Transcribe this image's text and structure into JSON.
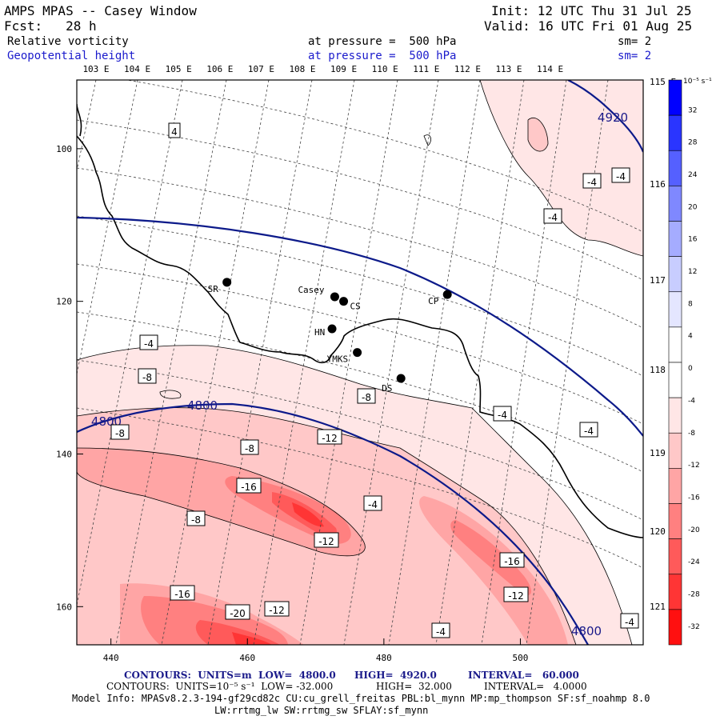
{
  "header": {
    "title": "AMPS MPAS -- Casey Window",
    "init": "Init: 12 UTC Thu 31 Jul 25",
    "fcst": "Fcst:   28 h",
    "valid": "Valid: 16 UTC Fri 01 Aug 25",
    "field1_name": "Relative vorticity",
    "field1_level": "at pressure =  500 hPa",
    "field1_sm": "sm= 2",
    "field2_name": "Geopotential height",
    "field2_level": "at pressure =  500 hPa",
    "field2_sm": "sm= 2"
  },
  "top_lon_labels": [
    "103 E",
    "104 E",
    "105 E",
    "106 E",
    "107 E",
    "108 E",
    "109 E",
    "110 E",
    "111 E",
    "112 E",
    "113 E",
    "114 E"
  ],
  "right_lat_labels": [
    "115 E",
    "116 E",
    "117 E",
    "118 E",
    "119 E",
    "120 E",
    "121 E"
  ],
  "left_ticks": [
    "100",
    "120",
    "140",
    "160"
  ],
  "bottom_ticks": [
    "440",
    "460",
    "480",
    "500"
  ],
  "stations": [
    {
      "name": "SR",
      "x": 457,
      "y": 117.5
    },
    {
      "name": "Casey",
      "x": 472.8,
      "y": 119.4
    },
    {
      "name": "CS",
      "x": 474.1,
      "y": 120.0
    },
    {
      "name": "CP",
      "x": 489.3,
      "y": 119.1
    },
    {
      "name": "HN",
      "x": 472.4,
      "y": 123.6
    },
    {
      "name": "YMKS",
      "x": 476.1,
      "y": 126.7
    },
    {
      "name": "DS",
      "x": 482.5,
      "y": 130.1
    }
  ],
  "contour_labels": [
    "4920",
    "4800",
    "4800",
    "4800",
    "4",
    "-4",
    "-4",
    "-4",
    "-4",
    "-4",
    "-4",
    "-4",
    "-4",
    "-4",
    "-8",
    "-8",
    "-8",
    "-8",
    "-8",
    "-12",
    "-12",
    "-12",
    "-12",
    "-16",
    "-16",
    "-16",
    "-20"
  ],
  "colorbar": {
    "unit": "10⁻⁵ s⁻¹",
    "levels": [
      "32",
      "28",
      "24",
      "20",
      "16",
      "12",
      "8",
      "4",
      "0",
      "-4",
      "-8",
      "-12",
      "-16",
      "-20",
      "-24",
      "-28",
      "-32"
    ],
    "colors": [
      "#0000ff",
      "#2a35ff",
      "#5560ff",
      "#7f88ff",
      "#a5acff",
      "#c8cdff",
      "#e4e6ff",
      "#ffffff",
      "#ffffff",
      "#ffe6e6",
      "#ffc8c8",
      "#ffa5a5",
      "#ff8080",
      "#ff5a5a",
      "#ff3535",
      "#ff1010"
    ]
  },
  "footer": {
    "line1_a": "CONTOURS:  UNITS=m  LOW=  4800.0",
    "line1_b": "HIGH=  4920.0",
    "line1_c": "INTERVAL=   60.000",
    "line2_a": "CONTOURS:  UNITS=10⁻⁵ s⁻¹  LOW= -32.000",
    "line2_b": "HIGH=  32.000",
    "line2_c": "INTERVAL=   4.0000",
    "model_info": "Model Info: MPASv8.2.3-194-gf29cd82c CU:cu_grell_freitas PBL:bl_mynn MP:mp_thompson SF:sf_noahmp 8.0",
    "model_info2": "LW:rrtmg_lw SW:rrtmg_sw SFLAY:sf_mynn"
  },
  "chart_data": {
    "type": "heatmap",
    "title": "AMPS MPAS -- Casey Window",
    "fields": [
      {
        "name": "Relative vorticity",
        "level": "500 hPa",
        "units": "10⁻⁵ s⁻¹",
        "low": -32,
        "high": 32,
        "interval": 4
      },
      {
        "name": "Geopotential height",
        "level": "500 hPa",
        "units": "m",
        "low": 4800,
        "high": 4920,
        "interval": 60
      }
    ],
    "xlim": [
      435,
      518
    ],
    "ylim": [
      165,
      91
    ],
    "x_ticks": [
      440,
      460,
      480,
      500
    ],
    "y_ticks": [
      100,
      120,
      140,
      160
    ],
    "height_contours": [
      4800,
      4920
    ],
    "vorticity_minimum_labels": [
      -20,
      -16,
      -12,
      -8,
      -4,
      4
    ]
  }
}
